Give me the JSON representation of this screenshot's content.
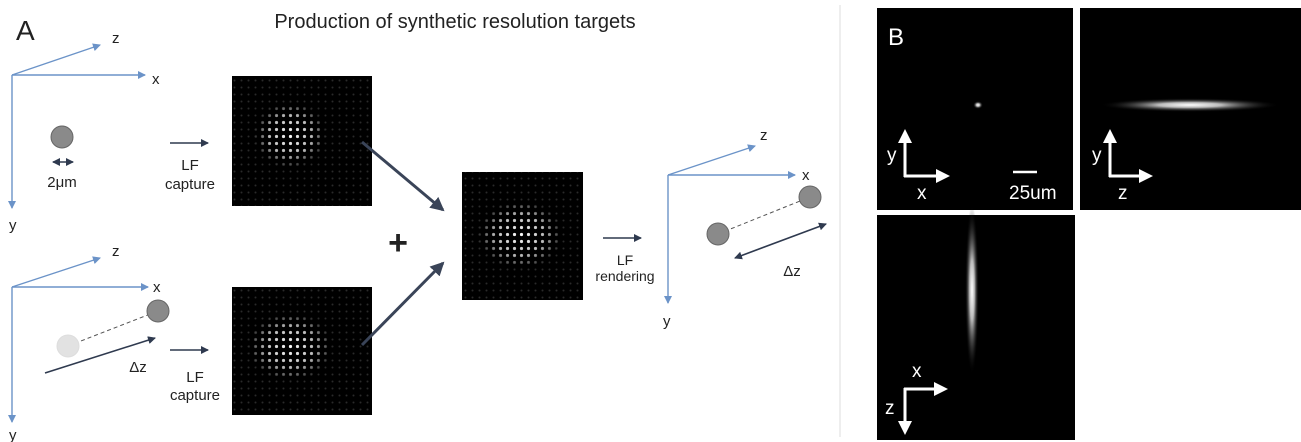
{
  "panel_a": {
    "label": "A",
    "title": "Production of  synthetic resolution targets",
    "single_bead": {
      "axes": {
        "x": "x",
        "y": "y",
        "z": "z"
      },
      "size": "2μm",
      "step": [
        "LF",
        "capture"
      ]
    },
    "bead_pair": {
      "axes": {
        "x": "x",
        "y": "y",
        "z": "z"
      },
      "offset": "Δz",
      "step": [
        "LF",
        "capture"
      ]
    },
    "combine": "+",
    "rendering": {
      "step": [
        "LF",
        "rendering"
      ],
      "axes": {
        "x": "x",
        "y": "y",
        "z": "z"
      },
      "offset": "Δz"
    }
  },
  "panel_b": {
    "label": "B",
    "xy_view": {
      "axes": [
        "y",
        "x"
      ],
      "scale_bar": "25um"
    },
    "yz_view": {
      "axes": [
        "y",
        "z"
      ]
    },
    "xz_view": {
      "axes": [
        "x",
        "z"
      ]
    }
  }
}
